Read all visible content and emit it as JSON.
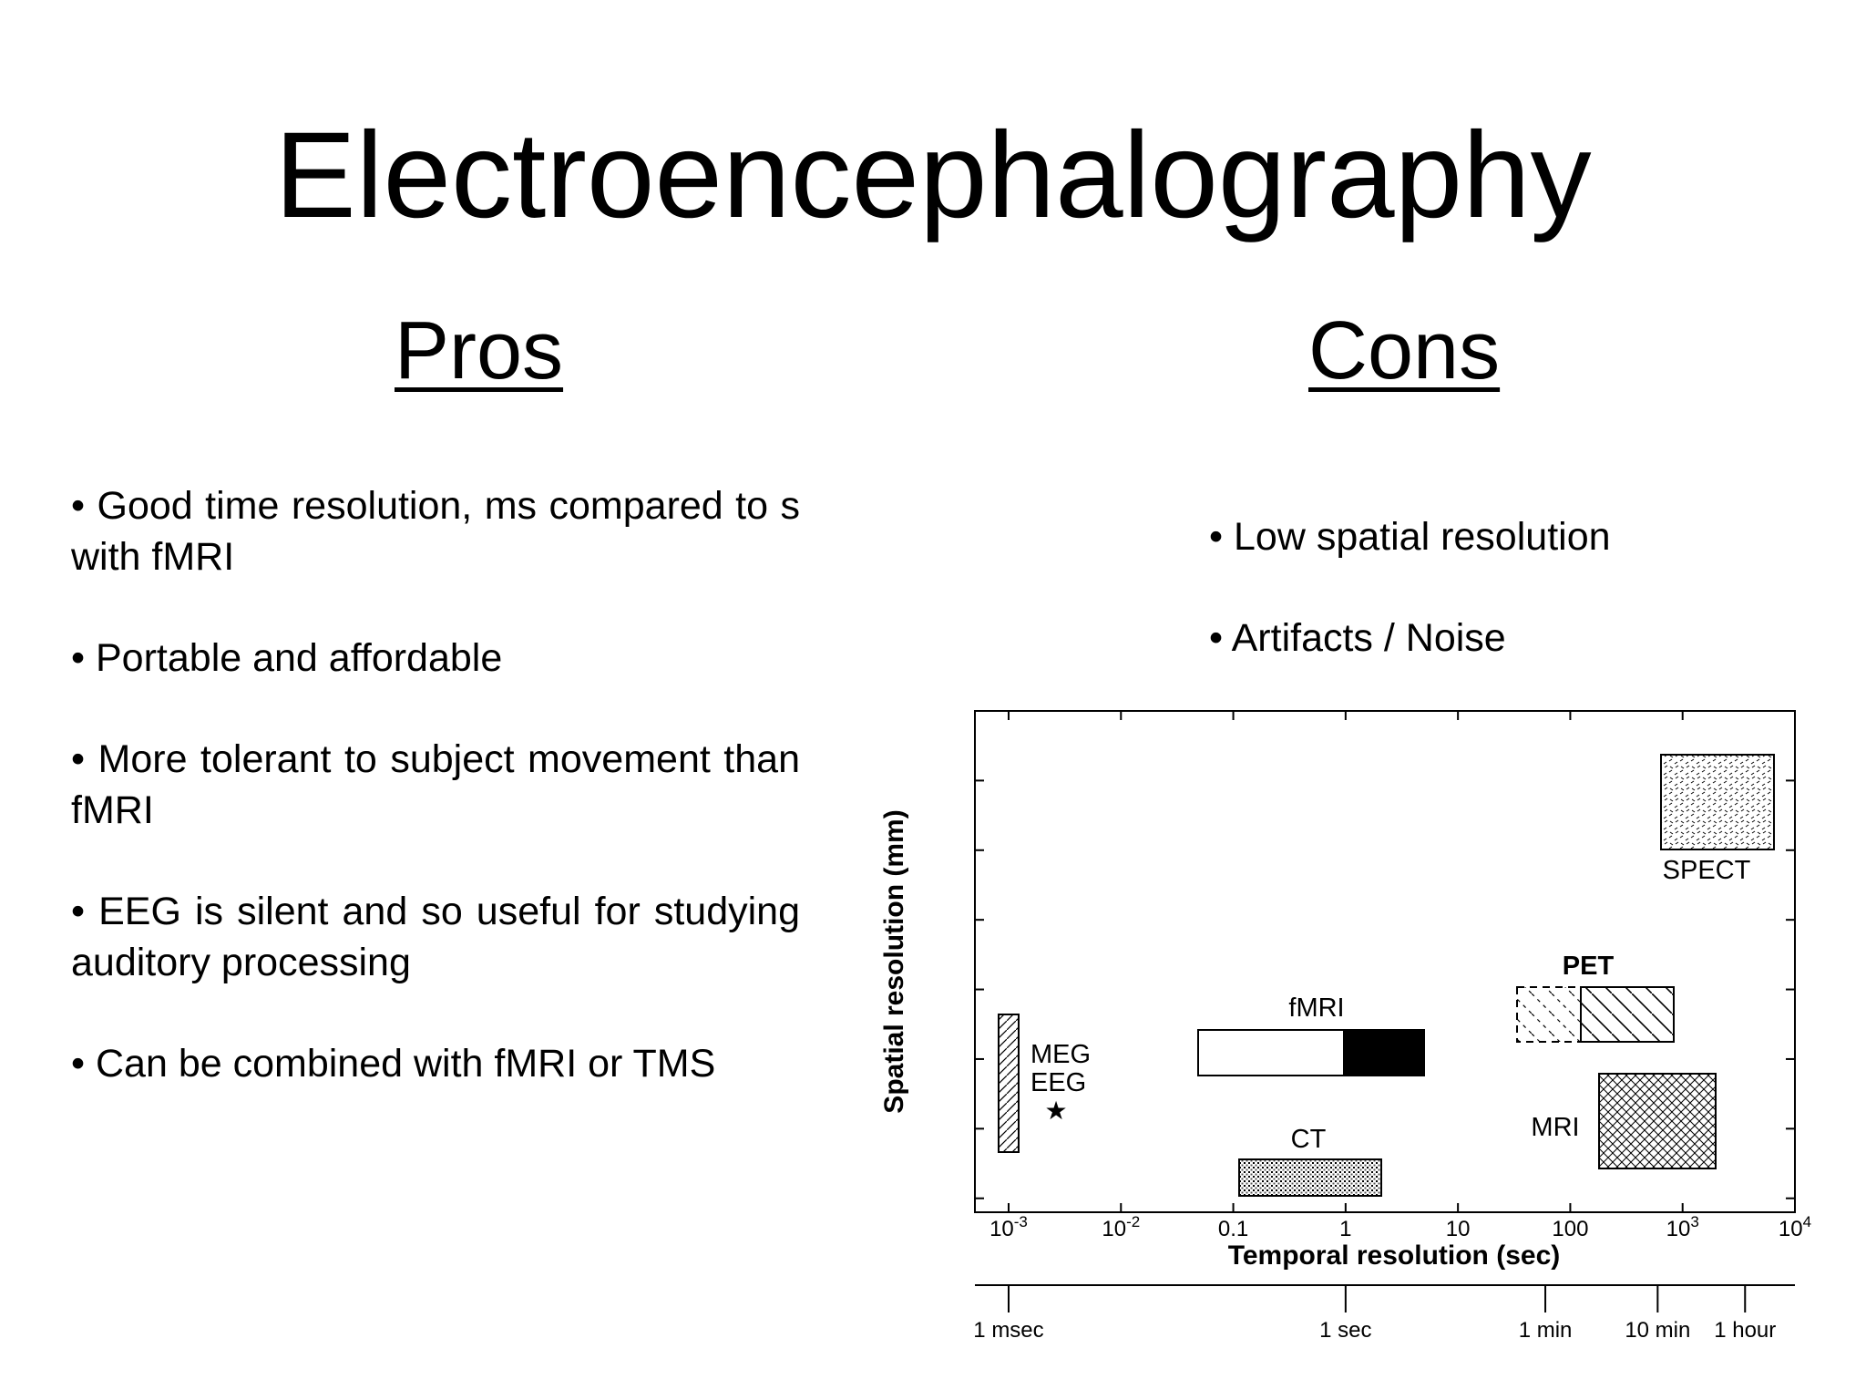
{
  "slide": {
    "title": "Electroencephalography",
    "pros_heading": "Pros",
    "cons_heading": "Cons"
  },
  "pros": [
    "• Good time resolution, ms compared to s with fMRI",
    "• Portable and affordable",
    "• More tolerant to subject movement than fMRI",
    "• EEG is silent and so useful for studying auditory processing",
    "• Can be combined with fMRI or TMS"
  ],
  "cons": [
    "• Low spatial resolution",
    "• Artifacts / Noise"
  ],
  "figure": {
    "xlabel": "Temporal resolution (sec)",
    "ylabel": "Spatial resolution (mm)",
    "x_ticks": [
      {
        "value": -3,
        "base": "10",
        "exp": "-3"
      },
      {
        "value": -2,
        "base": "10",
        "exp": "-2"
      },
      {
        "value": -1,
        "label": "0.1"
      },
      {
        "value": 0,
        "label": "1"
      },
      {
        "value": 1,
        "label": "10"
      },
      {
        "value": 2,
        "label": "100"
      },
      {
        "value": 3,
        "base": "10",
        "exp": "3"
      },
      {
        "value": 4,
        "base": "10",
        "exp": "4"
      }
    ],
    "time_scale": [
      {
        "label": "1 msec",
        "value": -3
      },
      {
        "label": "1 sec",
        "value": 0
      },
      {
        "label": "1 min",
        "value": 1.778
      },
      {
        "label": "10 min",
        "value": 2.778
      },
      {
        "label": "1 hour",
        "value": 3.556
      }
    ],
    "modalities": [
      {
        "label": "MEG",
        "label2": "EEG",
        "marker": "★"
      },
      {
        "label": "fMRI"
      },
      {
        "label": "CT"
      },
      {
        "label": "PET"
      },
      {
        "label": "MRI"
      },
      {
        "label": "SPECT"
      }
    ]
  }
}
